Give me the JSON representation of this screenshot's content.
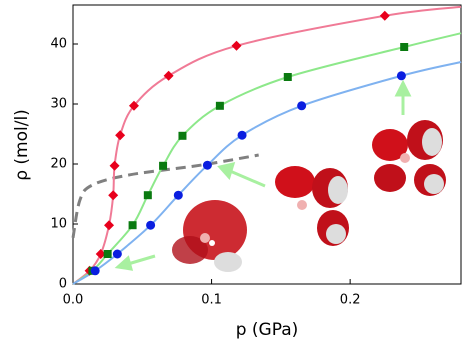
{
  "chart_data": {
    "type": "line",
    "x_label": "p (GPa)",
    "y_label": "ρ (mol/l)",
    "xlim": [
      0,
      0.28
    ],
    "ylim": [
      0,
      46.5
    ],
    "xticks": [
      {
        "value": 0,
        "label": "0.0"
      },
      {
        "value": 0.1,
        "label": "0.1"
      },
      {
        "value": 0.2,
        "label": "0.2"
      }
    ],
    "yticks": [
      0,
      10,
      20,
      30,
      40
    ],
    "series": [
      {
        "color": "#e8001c",
        "marker": "diamond",
        "line_color": "#f07a96",
        "x": [
          0.012,
          0.02,
          0.026,
          0.029,
          0.03,
          0.034,
          0.044,
          0.069,
          0.118,
          0.225
        ],
        "values": [
          2.2,
          5.0,
          9.8,
          14.8,
          19.7,
          24.8,
          29.7,
          34.7,
          39.7,
          44.7
        ],
        "curve_x": [
          0,
          0.012,
          0.02,
          0.026,
          0.029,
          0.03,
          0.034,
          0.044,
          0.069,
          0.118,
          0.225,
          0.28
        ],
        "curve_values": [
          0,
          2.2,
          5.0,
          9.8,
          14.8,
          19.7,
          24.8,
          29.7,
          34.7,
          39.7,
          44.7,
          46.2
        ]
      },
      {
        "color": "#0a7a10",
        "marker": "square",
        "line_color": "#8de88a",
        "x": [
          0.014,
          0.025,
          0.043,
          0.054,
          0.065,
          0.079,
          0.106,
          0.155,
          0.239
        ],
        "values": [
          2.2,
          5.0,
          9.8,
          14.8,
          19.7,
          24.7,
          29.7,
          34.5,
          39.5
        ],
        "curve_x": [
          0,
          0.014,
          0.025,
          0.043,
          0.054,
          0.065,
          0.079,
          0.106,
          0.155,
          0.239,
          0.28
        ],
        "curve_values": [
          0,
          2.2,
          5.0,
          9.8,
          14.8,
          19.7,
          24.7,
          29.7,
          34.5,
          39.5,
          41.8
        ]
      },
      {
        "color": "#0a1ee0",
        "marker": "circle",
        "line_color": "#7fb2f0",
        "x": [
          0.016,
          0.032,
          0.056,
          0.076,
          0.097,
          0.122,
          0.165,
          0.237
        ],
        "values": [
          2.2,
          5.0,
          9.8,
          14.8,
          19.8,
          24.8,
          29.7,
          34.7
        ],
        "curve_x": [
          0,
          0.016,
          0.032,
          0.056,
          0.076,
          0.097,
          0.122,
          0.165,
          0.237,
          0.28
        ],
        "curve_values": [
          0,
          2.2,
          5.0,
          9.8,
          14.8,
          19.8,
          24.8,
          29.7,
          34.7,
          37.0
        ]
      }
    ],
    "dashed": {
      "color": "#808080",
      "x": [
        0,
        0.005,
        0.014,
        0.041,
        0.092,
        0.134
      ],
      "values": [
        7.7,
        14.0,
        16.5,
        18.2,
        19.8,
        21.5
      ]
    }
  }
}
